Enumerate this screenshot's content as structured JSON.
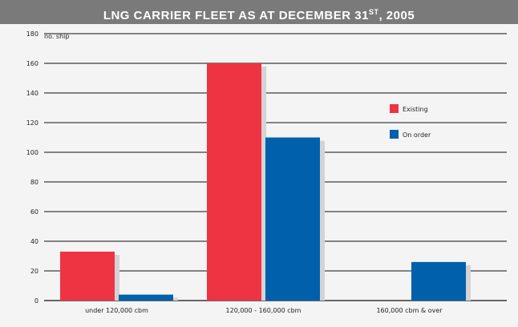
{
  "title": {
    "main": "LNG CARRIER FLEET AS AT DECEMBER 31",
    "sup": "ST",
    "tail": ", 2005"
  },
  "chart_data": {
    "type": "bar",
    "ylabel": "no. ship",
    "xlabel": "",
    "ylim": [
      0,
      180
    ],
    "yticks": [
      0,
      20,
      40,
      60,
      80,
      100,
      120,
      140,
      160,
      180
    ],
    "categories": [
      "under 120,000 cbm",
      "120,000 - 160,000 cbm",
      "160,000 cbm & over"
    ],
    "series": [
      {
        "name": "Existing",
        "color": "#ee3342",
        "values": [
          33,
          160,
          0
        ]
      },
      {
        "name": "On order",
        "color": "#0060ac",
        "values": [
          4,
          110,
          26
        ]
      }
    ],
    "grid": true,
    "legend": "right"
  }
}
